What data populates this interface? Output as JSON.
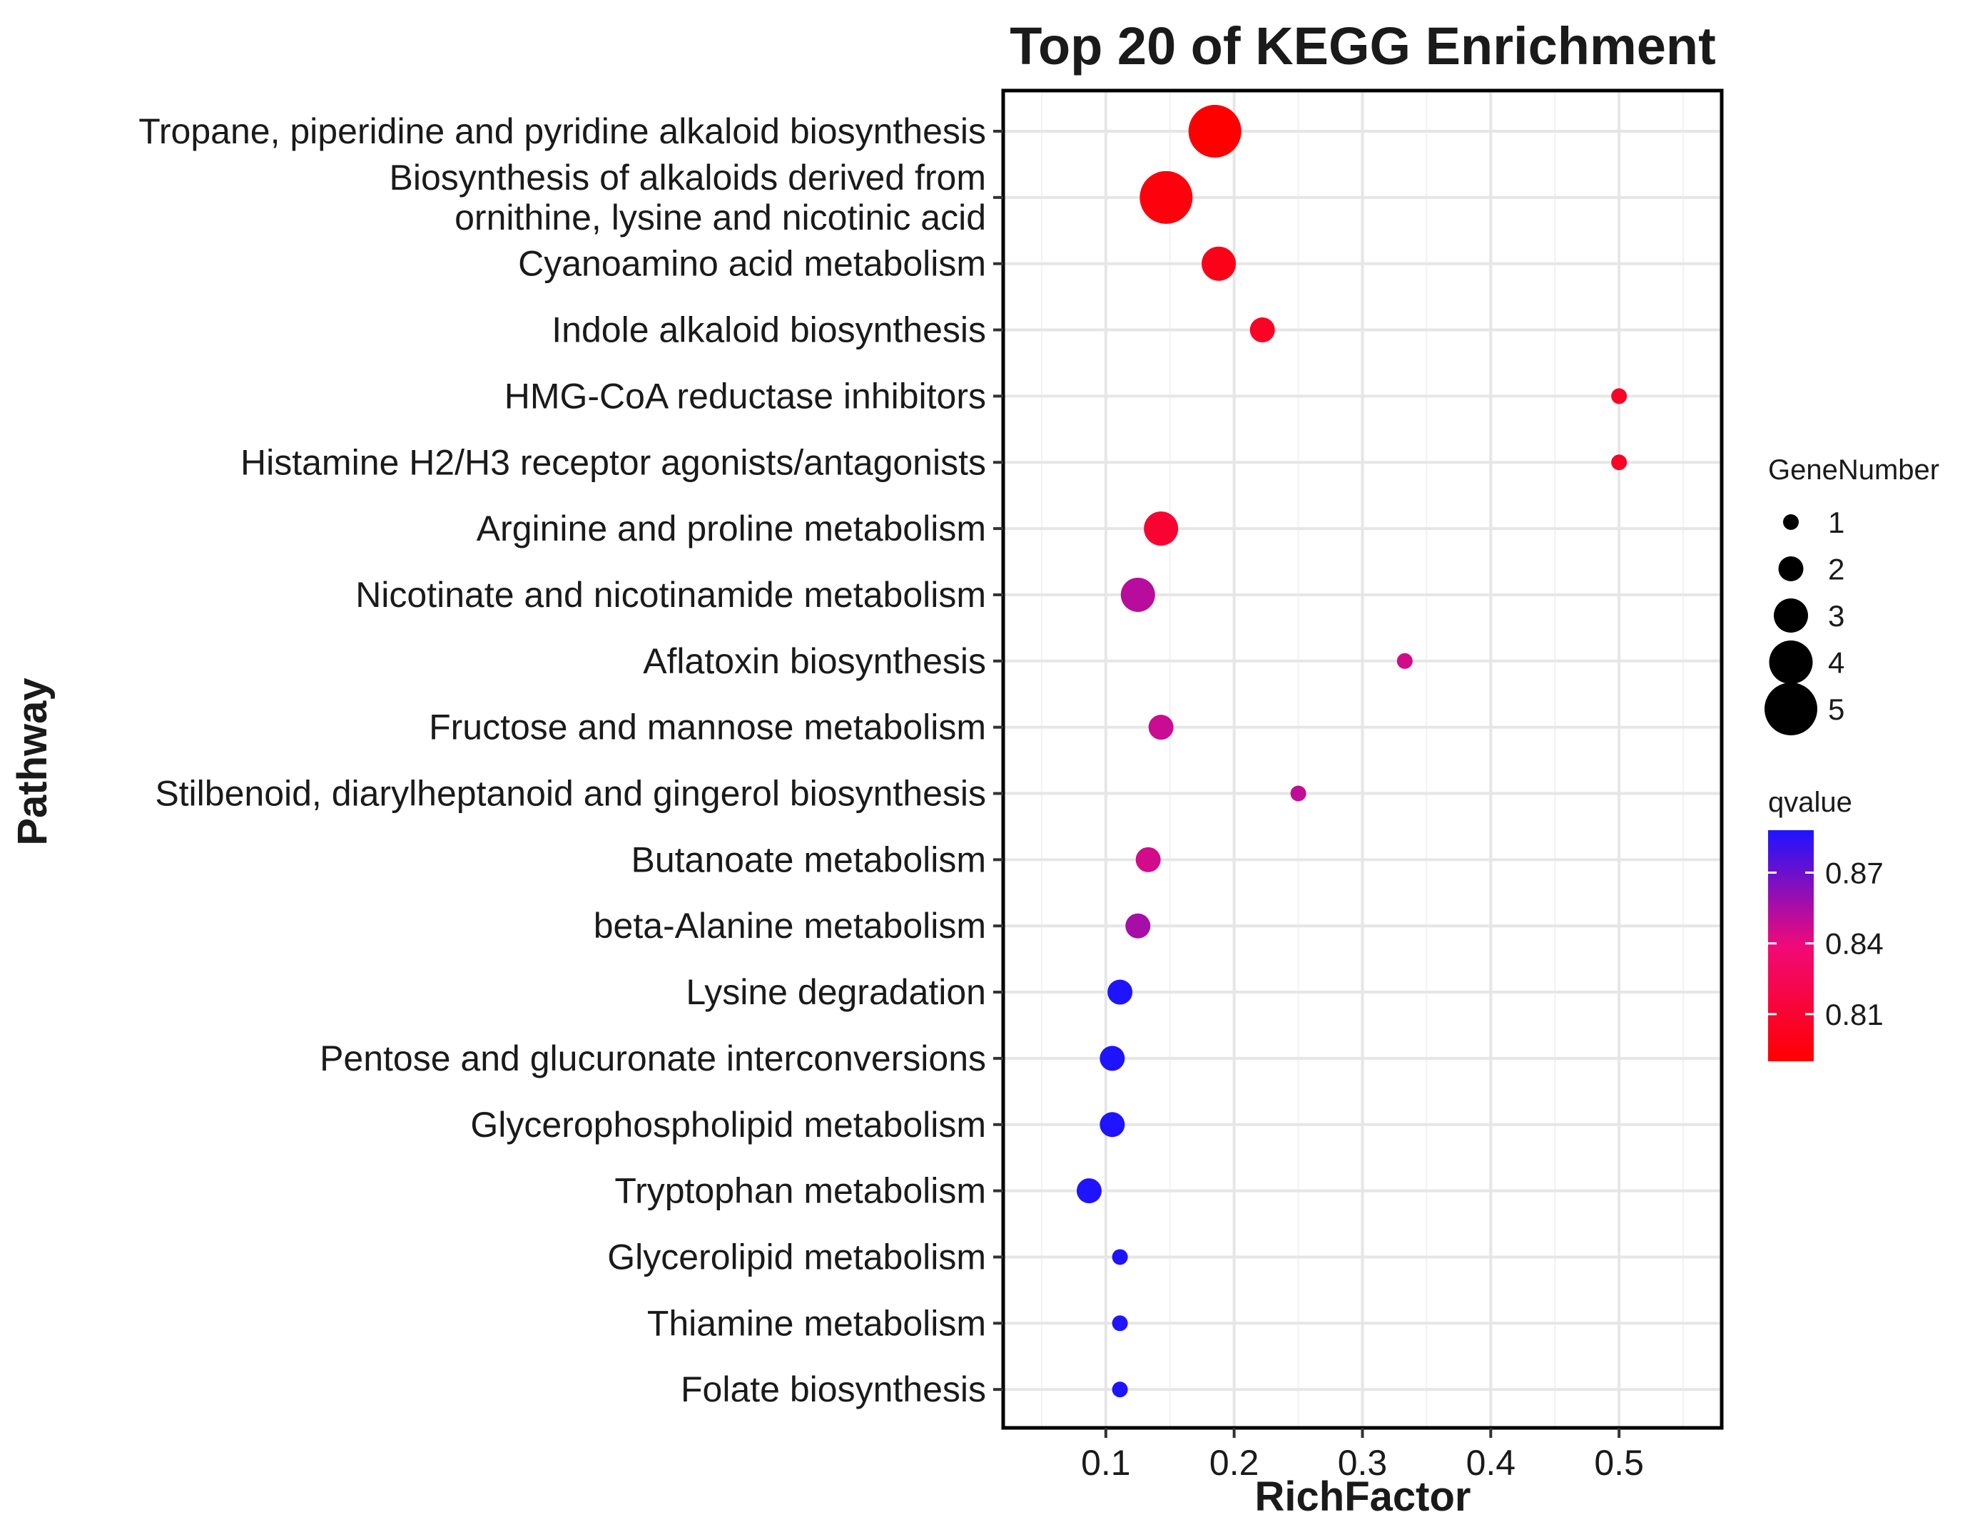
{
  "chart_data": {
    "type": "scatter",
    "title": "Top 20 of KEGG Enrichment",
    "xlabel": "RichFactor",
    "ylabel": "Pathway",
    "xlim": [
      0.02,
      0.58
    ],
    "xticks": [
      0.1,
      0.2,
      0.3,
      0.4,
      0.5
    ],
    "xtick_labels": [
      "0.1",
      "0.2",
      "0.3",
      "0.4",
      "0.5"
    ],
    "grid": true,
    "points": [
      {
        "pathway": "Tropane, piperidine and pyridine alkaloid biosynthesis",
        "lines": [
          "Tropane, piperidine and pyridine alkaloid biosynthesis"
        ],
        "rich_factor": 0.185,
        "gene_number": 5,
        "qvalue": 0.79
      },
      {
        "pathway": "Biosynthesis of alkaloids derived from ornithine, lysine and nicotinic acid",
        "lines": [
          "Biosynthesis of alkaloids derived from",
          "ornithine, lysine and nicotinic acid"
        ],
        "rich_factor": 0.147,
        "gene_number": 5,
        "qvalue": 0.795
      },
      {
        "pathway": "Cyanoamino acid metabolism",
        "lines": [
          "Cyanoamino acid metabolism"
        ],
        "rich_factor": 0.188,
        "gene_number": 3,
        "qvalue": 0.8
      },
      {
        "pathway": "Indole alkaloid biosynthesis",
        "lines": [
          "Indole alkaloid biosynthesis"
        ],
        "rich_factor": 0.222,
        "gene_number": 2,
        "qvalue": 0.805
      },
      {
        "pathway": "HMG-CoA reductase inhibitors",
        "lines": [
          "HMG-CoA reductase inhibitors"
        ],
        "rich_factor": 0.5,
        "gene_number": 1,
        "qvalue": 0.805
      },
      {
        "pathway": "Histamine H2/H3 receptor agonists/antagonists",
        "lines": [
          "Histamine H2/H3 receptor agonists/antagonists"
        ],
        "rich_factor": 0.5,
        "gene_number": 1,
        "qvalue": 0.805
      },
      {
        "pathway": "Arginine and proline metabolism",
        "lines": [
          "Arginine and proline metabolism"
        ],
        "rich_factor": 0.143,
        "gene_number": 3,
        "qvalue": 0.81
      },
      {
        "pathway": "Nicotinate and nicotinamide metabolism",
        "lines": [
          "Nicotinate and nicotinamide metabolism"
        ],
        "rich_factor": 0.125,
        "gene_number": 3,
        "qvalue": 0.852
      },
      {
        "pathway": "Aflatoxin biosynthesis",
        "lines": [
          "Aflatoxin biosynthesis"
        ],
        "rich_factor": 0.333,
        "gene_number": 1,
        "qvalue": 0.846
      },
      {
        "pathway": "Fructose and mannose metabolism",
        "lines": [
          "Fructose and mannose metabolism"
        ],
        "rich_factor": 0.143,
        "gene_number": 2,
        "qvalue": 0.848
      },
      {
        "pathway": "Stilbenoid, diarylheptanoid and gingerol biosynthesis",
        "lines": [
          "Stilbenoid, diarylheptanoid and gingerol biosynthesis"
        ],
        "rich_factor": 0.25,
        "gene_number": 1,
        "qvalue": 0.85
      },
      {
        "pathway": "Butanoate metabolism",
        "lines": [
          "Butanoate metabolism"
        ],
        "rich_factor": 0.133,
        "gene_number": 2,
        "qvalue": 0.846
      },
      {
        "pathway": "beta-Alanine metabolism",
        "lines": [
          "beta-Alanine metabolism"
        ],
        "rich_factor": 0.125,
        "gene_number": 2,
        "qvalue": 0.856
      },
      {
        "pathway": "Lysine degradation",
        "lines": [
          "Lysine degradation"
        ],
        "rich_factor": 0.111,
        "gene_number": 2,
        "qvalue": 0.888
      },
      {
        "pathway": "Pentose and glucuronate interconversions",
        "lines": [
          "Pentose and glucuronate interconversions"
        ],
        "rich_factor": 0.105,
        "gene_number": 2,
        "qvalue": 0.888
      },
      {
        "pathway": "Glycerophospholipid metabolism",
        "lines": [
          "Glycerophospholipid metabolism"
        ],
        "rich_factor": 0.105,
        "gene_number": 2,
        "qvalue": 0.888
      },
      {
        "pathway": "Tryptophan metabolism",
        "lines": [
          "Tryptophan metabolism"
        ],
        "rich_factor": 0.087,
        "gene_number": 2,
        "qvalue": 0.888
      },
      {
        "pathway": "Glycerolipid metabolism",
        "lines": [
          "Glycerolipid metabolism"
        ],
        "rich_factor": 0.111,
        "gene_number": 1,
        "qvalue": 0.888
      },
      {
        "pathway": "Thiamine metabolism",
        "lines": [
          "Thiamine metabolism"
        ],
        "rich_factor": 0.111,
        "gene_number": 1,
        "qvalue": 0.888
      },
      {
        "pathway": "Folate biosynthesis",
        "lines": [
          "Folate biosynthesis"
        ],
        "rich_factor": 0.111,
        "gene_number": 1,
        "qvalue": 0.888
      }
    ],
    "legend_size": {
      "title": "GeneNumber",
      "values": [
        1,
        2,
        3,
        4,
        5
      ],
      "labels": [
        "1",
        "2",
        "3",
        "4",
        "5"
      ]
    },
    "legend_color": {
      "title": "qvalue",
      "range": [
        0.79,
        0.888
      ],
      "ticks": [
        0.87,
        0.84,
        0.81
      ],
      "tick_labels": [
        "0.87",
        "0.84",
        "0.81"
      ],
      "low_color": "#ff0000",
      "high_color": "#1e14ff"
    }
  }
}
